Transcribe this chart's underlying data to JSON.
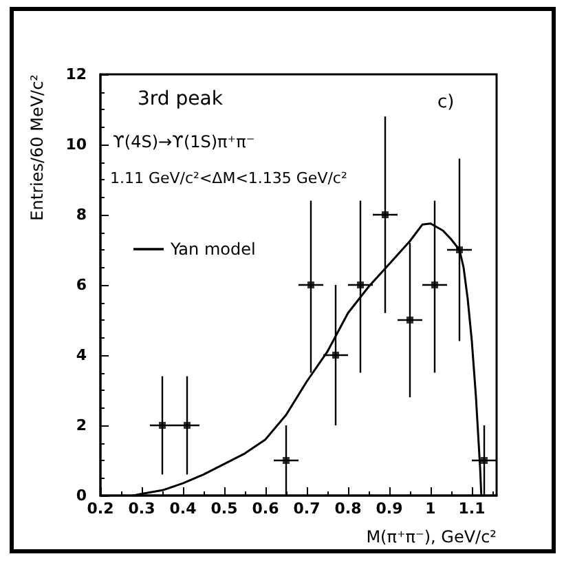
{
  "chart_data": {
    "type": "scatter",
    "xlabel": "M(π⁺π⁻), GeV/c²",
    "ylabel": "Entries/60 MeV/c²",
    "annotations": [
      "3rd peak",
      "ϒ(4S)→ϒ(1S)π⁺π⁻",
      "1.11 GeV/c²<ΔM<1.135 GeV/c²",
      "c)"
    ],
    "xlim": [
      0.2,
      1.16
    ],
    "xticks": [
      0.2,
      0.3,
      0.4,
      0.5,
      0.6,
      0.7,
      0.8,
      0.9,
      1,
      1.1
    ],
    "ylim": [
      0,
      12
    ],
    "yticks": [
      0,
      2,
      4,
      6,
      8,
      10,
      12
    ],
    "grid": false,
    "legend": "top left",
    "series": [
      {
        "color": "#000000",
        "marker": "square",
        "x": [
          0.35,
          0.41,
          0.65,
          0.71,
          0.77,
          0.83,
          0.89,
          0.95,
          1.01,
          1.07,
          1.13
        ],
        "values": [
          2,
          2,
          1,
          6,
          4,
          6,
          8,
          5,
          6,
          7,
          1
        ],
        "errors": [
          [
            0.6,
            3.4
          ],
          [
            0.6,
            3.4
          ],
          [
            0,
            2
          ],
          [
            3.5,
            8.4
          ],
          [
            2,
            6
          ],
          [
            3.5,
            8.4
          ],
          [
            5.2,
            10.8
          ],
          [
            2.8,
            7.2
          ],
          [
            3.5,
            8.4
          ],
          [
            4.4,
            9.6
          ],
          [
            0,
            2
          ]
        ],
        "xerrors": [
          0.03,
          0.03,
          0.03,
          0.03,
          0.03,
          0.03,
          0.03,
          0.03,
          0.03,
          0.03,
          0.03
        ]
      },
      {
        "type": "line",
        "name": "Yan model",
        "color": "#000000",
        "line_style": "solid",
        "x": [
          0.28,
          0.3,
          0.35,
          0.4,
          0.45,
          0.5,
          0.55,
          0.6,
          0.65,
          0.7,
          0.75,
          0.8,
          0.85,
          0.9,
          0.95,
          0.98,
          1.0,
          1.03,
          1.05,
          1.07,
          1.08,
          1.09,
          1.1,
          1.11,
          1.12,
          1.123
        ],
        "values": [
          0,
          0.05,
          0.15,
          0.35,
          0.6,
          0.9,
          1.2,
          1.6,
          2.3,
          3.25,
          4.1,
          5.2,
          5.95,
          6.6,
          7.25,
          7.72,
          7.75,
          7.55,
          7.3,
          7.0,
          6.5,
          5.6,
          4.4,
          2.8,
          0.8,
          0
        ]
      }
    ]
  }
}
